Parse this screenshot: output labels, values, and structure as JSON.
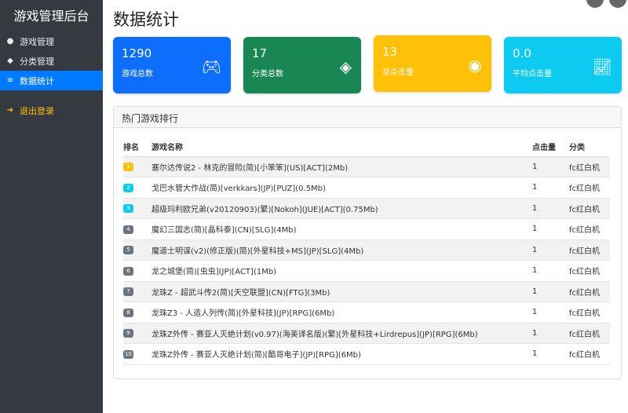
{
  "sidebar": {
    "title": "游戏管理后台",
    "items": [
      {
        "label": "游戏管理",
        "icon": "gamepad-icon"
      },
      {
        "label": "分类管理",
        "icon": "tags-icon"
      },
      {
        "label": "数据统计",
        "icon": "chart-icon",
        "active": true
      }
    ],
    "logout": "退出登录"
  },
  "page_title": "数据统计",
  "cards": [
    {
      "value": "1290",
      "label": "游戏总数",
      "icon": "gamepad-icon",
      "color": "#0d6efd"
    },
    {
      "value": "17",
      "label": "分类总数",
      "icon": "tags-icon",
      "color": "#198754"
    },
    {
      "value": "13",
      "label": "总点击量",
      "icon": "eye-icon",
      "color": "#ffc107"
    },
    {
      "value": "0.0",
      "label": "平均点击量",
      "icon": "line-chart-icon",
      "color": "#0dcaf0"
    }
  ],
  "ranking": {
    "title": "热门游戏排行",
    "headers": [
      "排名",
      "游戏名称",
      "点击量",
      "分类"
    ],
    "rows": [
      {
        "rank": "1",
        "name": "塞尔达传说2 - 林克的冒险(简)[小笨笨](US)[ACT](2Mb)",
        "clicks": "1",
        "category": "fc红白机"
      },
      {
        "rank": "2",
        "name": "戈巴水管大作战(简)[verkkars](JP)[PUZ](0.5Mb)",
        "clicks": "1",
        "category": "fc红白机"
      },
      {
        "rank": "3",
        "name": "超级玛利欧兄弟(v20120903)(繁)[Nokoh](JUE)[ACT](0.75Mb)",
        "clicks": "1",
        "category": "fc红白机"
      },
      {
        "rank": "4",
        "name": "魔幻三国志(简)[晶科泰](CN)[SLG](4Mb)",
        "clicks": "1",
        "category": "fc红白机"
      },
      {
        "rank": "5",
        "name": "魔道士明谋(v2)(修正版)(简)[外星科技+MS](JP)[SLG](4Mb)",
        "clicks": "1",
        "category": "fc红白机"
      },
      {
        "rank": "6",
        "name": "龙之城堡(简)[虫虫](JP)[ACT](1Mb)",
        "clicks": "1",
        "category": "fc红白机"
      },
      {
        "rank": "7",
        "name": "龙珠Z - 超武斗传2(简)[天空联盟](CN)[FTG](3Mb)",
        "clicks": "1",
        "category": "fc红白机"
      },
      {
        "rank": "8",
        "name": "龙珠Z3 - 人造人列传(简)[外星科技](JP)[RPG](6Mb)",
        "clicks": "1",
        "category": "fc红白机"
      },
      {
        "rank": "9",
        "name": "龙珠Z外传 - 赛亚人灭绝计划(v0.97)(海美译名版)(繁)[外星科技+Lirdrepus](JP)[RPG](6Mb)",
        "clicks": "1",
        "category": "fc红白机"
      },
      {
        "rank": "10",
        "name": "龙珠Z外传 - 赛亚人灭绝计划(简)[酷哥电子](JP)[RPG](6Mb)",
        "clicks": "1",
        "category": "fc红白机"
      }
    ]
  }
}
